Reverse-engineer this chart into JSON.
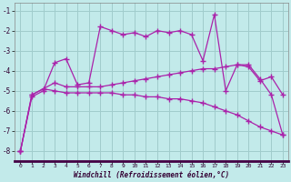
{
  "xlabel": "Windchill (Refroidissement éolien,°C)",
  "xlim": [
    -0.5,
    23.5
  ],
  "ylim": [
    -8.5,
    -0.6
  ],
  "yticks": [
    -8,
    -7,
    -6,
    -5,
    -4,
    -3,
    -2,
    -1
  ],
  "xticks": [
    0,
    1,
    2,
    3,
    4,
    5,
    6,
    7,
    8,
    9,
    10,
    11,
    12,
    13,
    14,
    15,
    16,
    17,
    18,
    19,
    20,
    21,
    22,
    23
  ],
  "background_color": "#c2eaea",
  "grid_color": "#a0cccc",
  "line_color": "#aa22aa",
  "line1_x": [
    0,
    1,
    2,
    3,
    4,
    5,
    6,
    7,
    8,
    9,
    10,
    11,
    12,
    13,
    14,
    15,
    16,
    17,
    18,
    19,
    20,
    21,
    22,
    23
  ],
  "line1_y": [
    -8.0,
    -5.3,
    -5.0,
    -3.6,
    -3.4,
    -4.7,
    -4.6,
    -1.8,
    -2.0,
    -2.2,
    -2.1,
    -2.3,
    -2.0,
    -2.1,
    -2.0,
    -2.2,
    -3.5,
    -1.2,
    -5.0,
    -3.7,
    -3.8,
    -4.5,
    -4.3,
    -5.2
  ],
  "line2_x": [
    0,
    1,
    2,
    3,
    4,
    5,
    6,
    7,
    8,
    9,
    10,
    11,
    12,
    13,
    14,
    15,
    16,
    17,
    18,
    19,
    20,
    21,
    22,
    23
  ],
  "line2_y": [
    -8.0,
    -5.2,
    -4.9,
    -4.6,
    -4.8,
    -4.8,
    -4.8,
    -4.8,
    -4.7,
    -4.6,
    -4.5,
    -4.4,
    -4.3,
    -4.2,
    -4.1,
    -4.0,
    -3.9,
    -3.9,
    -3.8,
    -3.7,
    -3.7,
    -4.4,
    -5.2,
    -7.2
  ],
  "line3_x": [
    0,
    1,
    2,
    3,
    4,
    5,
    6,
    7,
    8,
    9,
    10,
    11,
    12,
    13,
    14,
    15,
    16,
    17,
    18,
    19,
    20,
    21,
    22,
    23
  ],
  "line3_y": [
    -8.0,
    -5.2,
    -4.9,
    -5.0,
    -5.1,
    -5.1,
    -5.1,
    -5.1,
    -5.1,
    -5.2,
    -5.2,
    -5.3,
    -5.3,
    -5.4,
    -5.4,
    -5.5,
    -5.6,
    -5.8,
    -6.0,
    -6.2,
    -6.5,
    -6.8,
    -7.0,
    -7.2
  ]
}
